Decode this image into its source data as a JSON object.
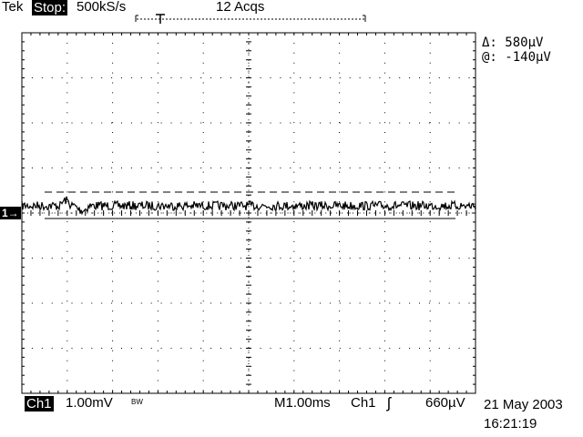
{
  "header": {
    "brand": "Tek",
    "run_state": "Stop:",
    "sample_rate": "500kS/s",
    "acquisitions": "12 Acqs"
  },
  "cursor_readout": {
    "delta": "Δ: 580µV",
    "at": "@: -140µV"
  },
  "marker": {
    "channel_ground": "1→"
  },
  "footer": {
    "channel": "Ch1",
    "volts_per_div": "1.00mV",
    "bandwidth_flag": "BW",
    "timebase": "M1.00ms",
    "trigger_source": "Ch1",
    "trigger_slope_symbol": "ʃ",
    "trigger_level": "660µV",
    "date": "21 May 2003",
    "time": "16:21:19"
  },
  "colors": {
    "trace": "#000000",
    "background": "#ffffff"
  }
}
